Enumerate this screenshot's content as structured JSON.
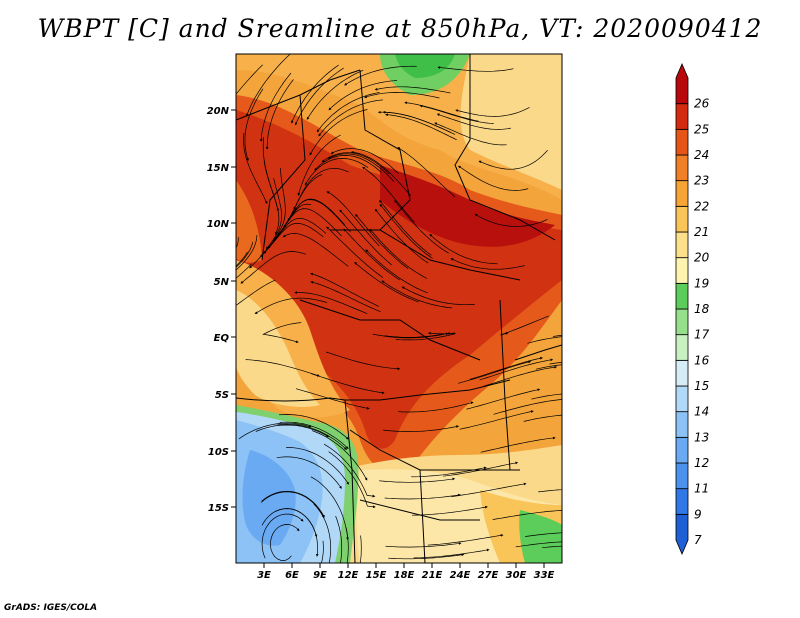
{
  "title": "WBPT [C] and Sreamline at 850hPa, VT: 2020090412",
  "credit": "GrADS: IGES/COLA",
  "map": {
    "lat_ticks": [
      "20N",
      "15N",
      "10N",
      "5N",
      "EQ",
      "5S",
      "10S",
      "15S"
    ],
    "lon_ticks": [
      "3E",
      "6E",
      "9E",
      "12E",
      "15E",
      "18E",
      "21E",
      "24E",
      "27E",
      "30E",
      "33E"
    ]
  },
  "colorbar": {
    "levels": [
      "7",
      "9",
      "11",
      "12",
      "13",
      "14",
      "15",
      "16",
      "17",
      "18",
      "19",
      "20",
      "21",
      "22",
      "23",
      "24",
      "25",
      "26"
    ],
    "colors": [
      "#1e5fd6",
      "#2f78e6",
      "#4a92ee",
      "#6aaaf2",
      "#8cc2f5",
      "#b2d8f7",
      "#d6ecf6",
      "#c8f0c0",
      "#96e08c",
      "#5ccc5a",
      "#fff3b0",
      "#fde08a",
      "#f9c458",
      "#f7a437",
      "#f07f25",
      "#e55518",
      "#d42a10",
      "#b8080c"
    ]
  },
  "colors": {
    "hot": "#d63a12",
    "warm": "#f5a238",
    "mild": "#fbd98a",
    "cool_green": "#6fcf62",
    "cold_blue": "#9ecbf2"
  }
}
